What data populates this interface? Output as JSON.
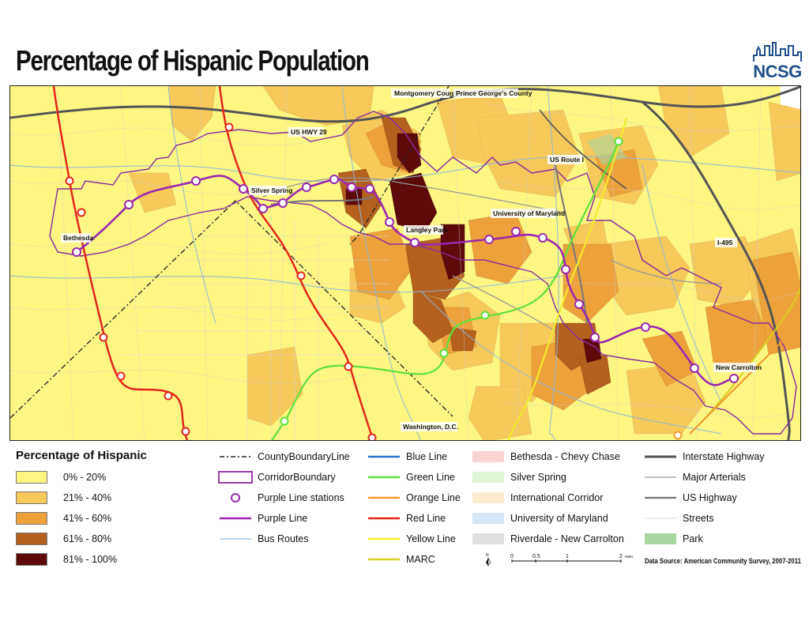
{
  "title": "Percentage of Hispanic Population",
  "logo": {
    "text": "NCSG"
  },
  "map_labels": {
    "montgomery": "Montgomery County",
    "princegeorges": "Prince George's County",
    "ushwy29": "US HWY 29",
    "usroute1": "US Route I",
    "silverspring": "Silver Spring",
    "bethesda": "Bethesda",
    "langleypark": "Langley Park",
    "umd": "University of Maryland",
    "i495": "I-495",
    "newcarrolton": "New Carrolton",
    "washington": "Washington, D.C."
  },
  "legend": {
    "title": "Percentage of Hispanic",
    "classes": [
      {
        "label": "0% - 20%",
        "color": "#fdf683"
      },
      {
        "label": "21% - 40%",
        "color": "#f7c85a"
      },
      {
        "label": "41% - 60%",
        "color": "#eda13a"
      },
      {
        "label": "61% - 80%",
        "color": "#b4601e"
      },
      {
        "label": "81% - 100%",
        "color": "#5e0a0a"
      }
    ],
    "col1": [
      "CountyBoundaryLine",
      "CorridorBoundary",
      "Purple Line stations",
      "Purple Line",
      "Bus Routes"
    ],
    "col2": [
      "Blue Line",
      "Green Line",
      "Orange Line",
      "Red Line",
      "Yellow Line",
      "MARC"
    ],
    "col2_colors": [
      "#2f73c8",
      "#5ee03a",
      "#f29a2e",
      "#e3281b",
      "#f3ea2a",
      "#d9cf1c"
    ],
    "col3": [
      "Bethesda - Chevy Chase",
      "Silver Spring",
      "International Corridor",
      "University of Maryland",
      "Riverdale - New Carrolton"
    ],
    "col3_colors": [
      "#f9d2d2",
      "#dff5d6",
      "#fdebd0",
      "#d6e7f7",
      "#e0e0e0"
    ],
    "col4": [
      "Interstate Highway",
      "Major Arterials",
      "US Highway",
      "Streets",
      "Park"
    ],
    "col4_colors": [
      "#555555",
      "#999999",
      "#777777",
      "#cccccc",
      "#a9d6a0"
    ]
  },
  "scale": {
    "ticks": [
      "0",
      "0.5",
      "1",
      "2"
    ],
    "unit": "Miles"
  },
  "north": "N",
  "source": "Data Source: American Community Survey, 2007-2011",
  "colors": {
    "purple": "#9c27b0",
    "red": "#e3281b",
    "green": "#5ee03a",
    "yellow": "#f3ea2a"
  }
}
